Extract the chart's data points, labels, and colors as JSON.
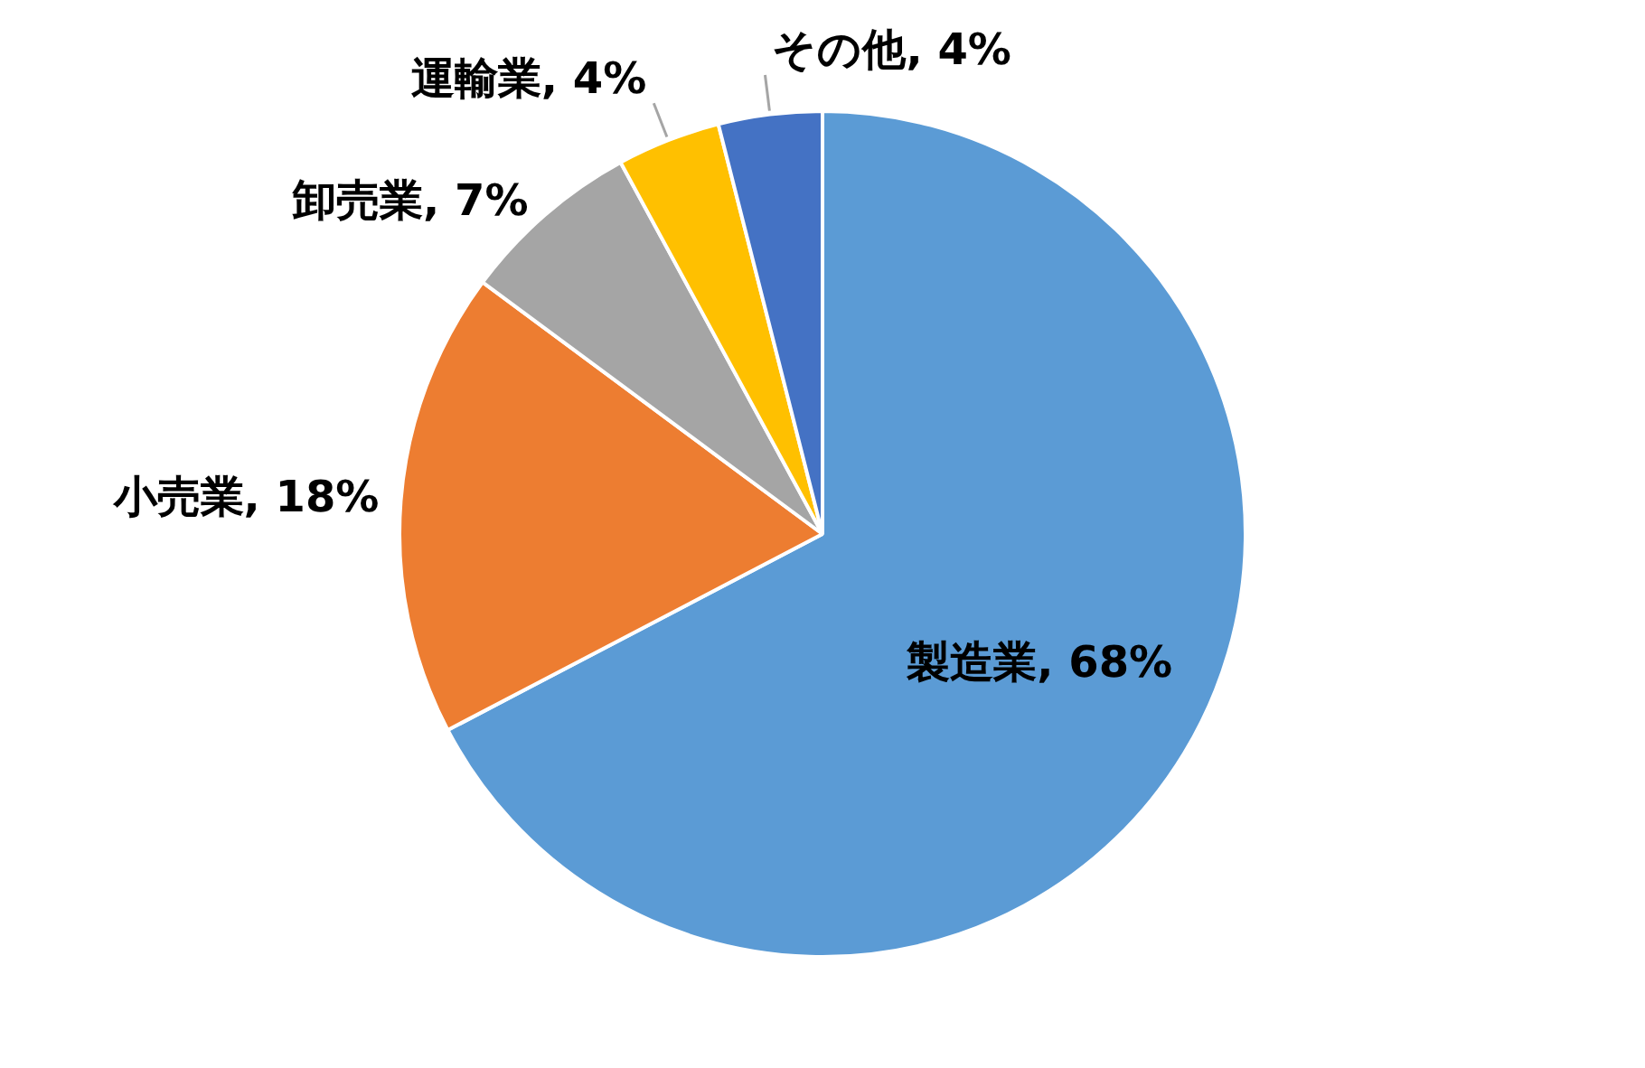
{
  "chart_data": {
    "type": "pie",
    "categories": [
      "製造業",
      "小売業",
      "卸売業",
      "運輸業",
      "その他"
    ],
    "values": [
      68,
      18,
      7,
      4,
      4
    ],
    "value_labels": [
      "68%",
      "18%",
      "7%",
      "4%",
      "4%"
    ],
    "colors": [
      "#5b9bd5",
      "#ed7d31",
      "#a5a5a5",
      "#ffc000",
      "#4472c4"
    ],
    "legend": false
  }
}
